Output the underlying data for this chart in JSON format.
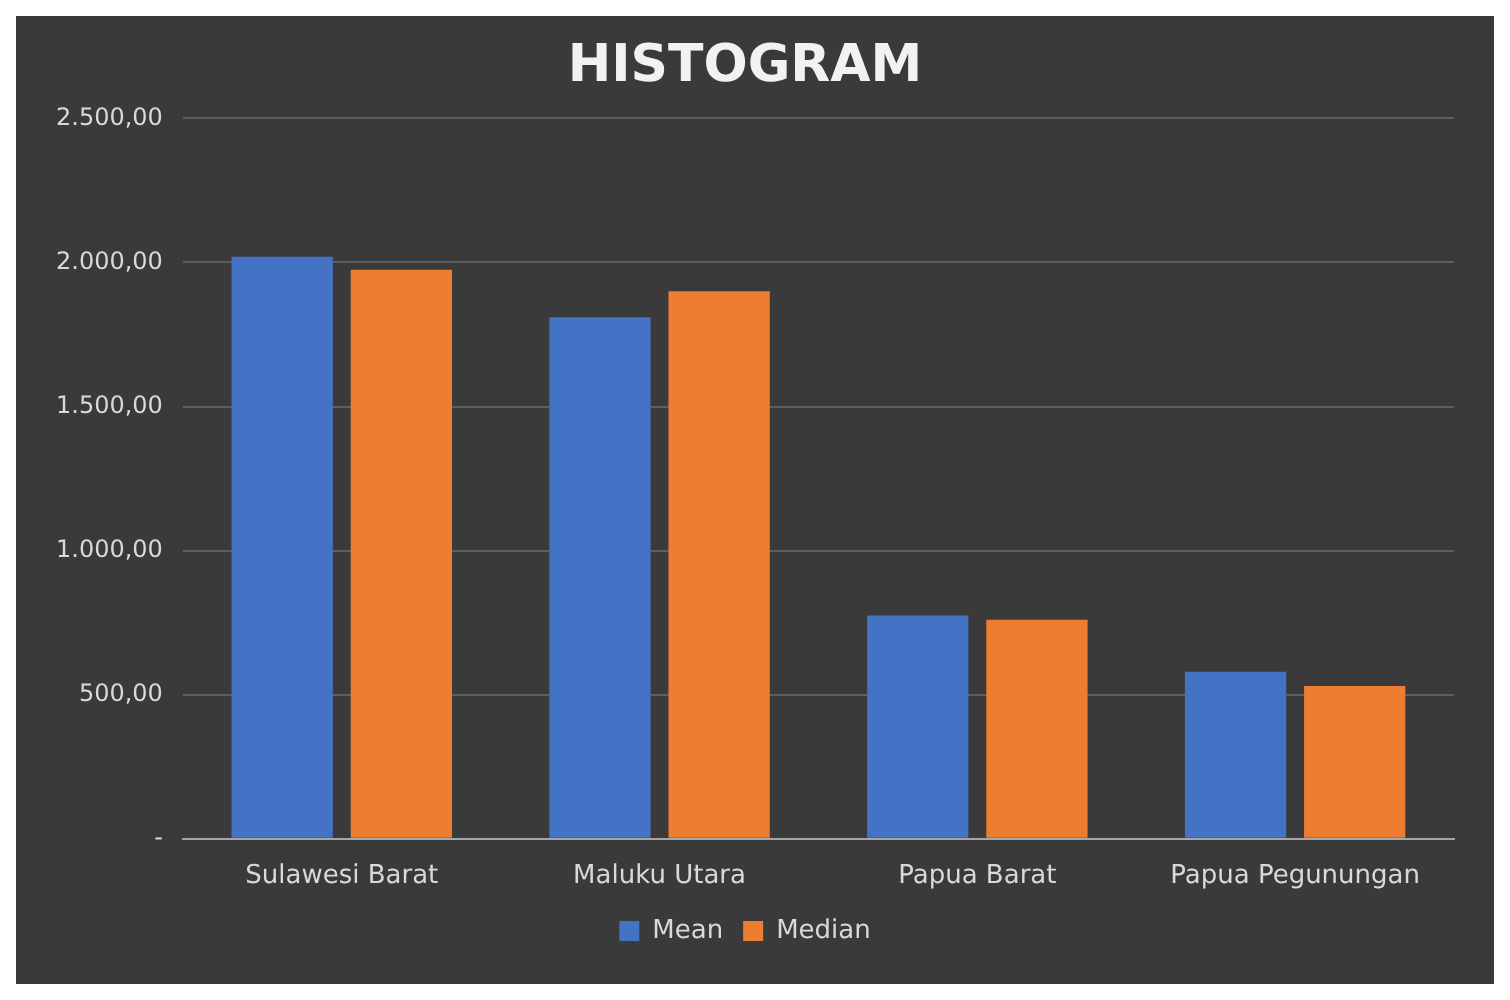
{
  "chart_data": {
    "type": "bar",
    "title": "HISTOGRAM",
    "categories": [
      "Sulawesi Barat",
      "Maluku Utara",
      "Papua Barat",
      "Papua Pegunungan"
    ],
    "series": [
      {
        "name": "Mean",
        "color": "#4472c4",
        "values": [
          2020,
          1810,
          775,
          580
        ]
      },
      {
        "name": "Median",
        "color": "#ed7d31",
        "values": [
          1975,
          1900,
          760,
          530
        ]
      }
    ],
    "ylim": [
      0,
      2500
    ],
    "yticks": [
      {
        "value": 0,
        "label": "-"
      },
      {
        "value": 500,
        "label": "500,00"
      },
      {
        "value": 1000,
        "label": "1.000,00"
      },
      {
        "value": 1500,
        "label": "1.500,00"
      },
      {
        "value": 2000,
        "label": "2.000,00"
      },
      {
        "value": 2500,
        "label": "2.500,00"
      }
    ],
    "grid": "y",
    "legend": "bottom"
  }
}
